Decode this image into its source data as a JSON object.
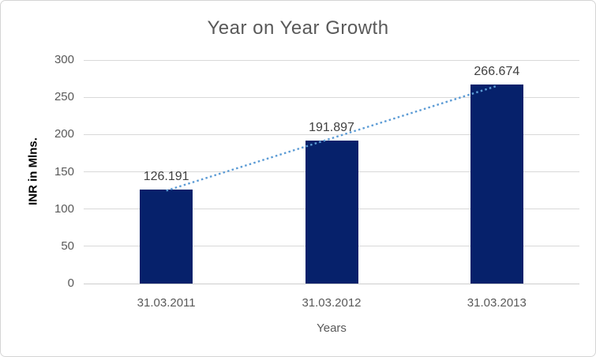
{
  "chart_data": {
    "type": "bar",
    "title": "Year on Year Growth",
    "categories": [
      "31.03.2011",
      "31.03.2012",
      "31.03.2013"
    ],
    "values": [
      126.191,
      191.897,
      266.674
    ],
    "data_labels": [
      "126.191",
      "191.897",
      "266.674"
    ],
    "xlabel": "Years",
    "ylabel": "INR in Mlns.",
    "ylim": [
      0,
      300
    ],
    "y_ticks": [
      0,
      50,
      100,
      150,
      200,
      250,
      300
    ],
    "grid": true,
    "legend": "none",
    "bar_color": "#06216B",
    "trendline": {
      "type": "linear",
      "style": "dotted",
      "color": "#5B9BD5",
      "start_value": 124.7,
      "end_value": 265.2
    },
    "colors": {
      "title_text": "#595959",
      "axis_text": "#595959",
      "data_label_text": "#404040",
      "gridline": "#D9D9D9"
    }
  }
}
